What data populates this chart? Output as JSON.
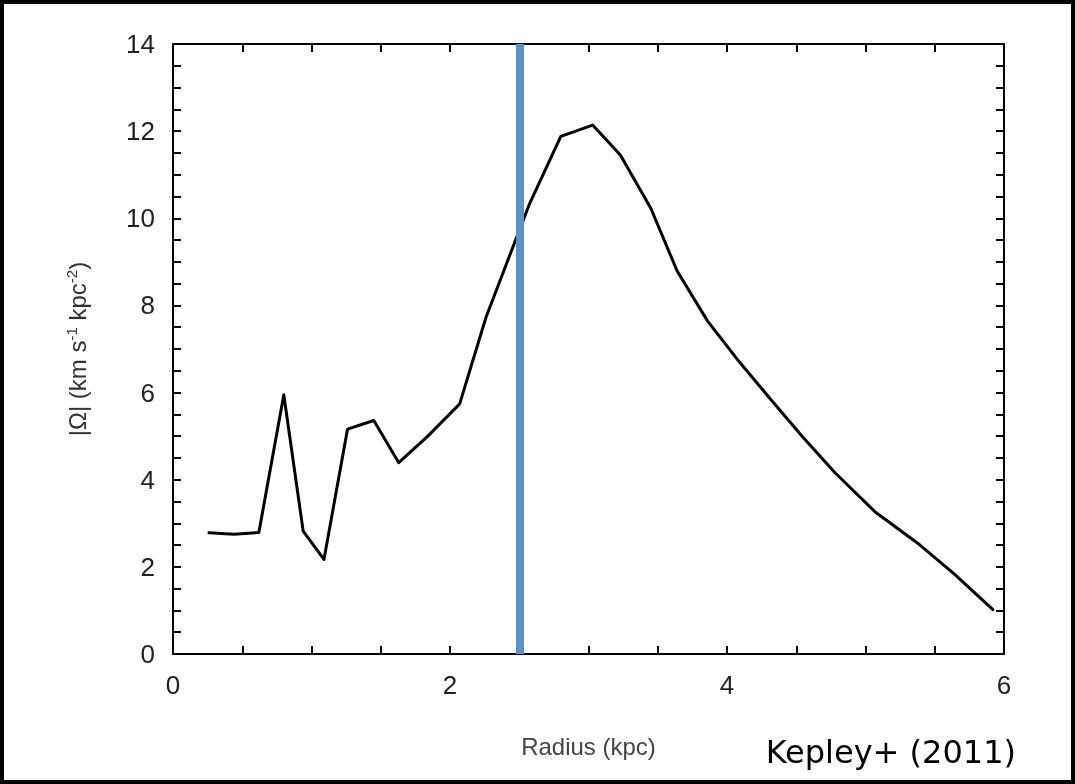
{
  "chart_data": {
    "type": "line",
    "xlabel": "Radius (kpc)",
    "ylabel": "|Ω| (km s$^{-1}$ kpc$^{-2}$)",
    "annotations": [
      "Kepley+ (2011)"
    ],
    "x": [
      0.26,
      0.44,
      0.62,
      0.8,
      0.94,
      1.09,
      1.26,
      1.45,
      1.63,
      1.84,
      2.07,
      2.26,
      2.57,
      2.8,
      3.03,
      3.23,
      3.45,
      3.64,
      3.86,
      4.09,
      4.33,
      4.55,
      4.78,
      5.07,
      5.37,
      5.64,
      5.92
    ],
    "series": [
      {
        "color": "#000000",
        "values": [
          2.78,
          2.75,
          2.79,
          5.95,
          2.82,
          2.17,
          5.16,
          5.36,
          4.39,
          5.0,
          5.74,
          7.73,
          10.3,
          11.88,
          12.14,
          11.45,
          10.23,
          8.79,
          7.64,
          6.7,
          5.79,
          4.97,
          4.16,
          3.26,
          2.56,
          1.84,
          1.02
        ]
      }
    ],
    "xlim": [
      0,
      6
    ],
    "xticks": [
      0,
      {
        "value": 0.5,
        "label": null
      },
      {
        "value": 1,
        "label": null
      },
      {
        "value": 1.5,
        "label": null
      },
      2,
      {
        "value": 2.5,
        "label": null
      },
      {
        "value": 3,
        "label": null
      },
      {
        "value": 3.5,
        "label": null
      },
      4,
      {
        "value": 4.5,
        "label": null
      },
      {
        "value": 5,
        "label": null
      },
      {
        "value": 5.5,
        "label": null
      },
      6
    ],
    "ylim": [
      0,
      14
    ],
    "yticks": [
      0,
      {
        "value": 0.5,
        "label": null
      },
      {
        "value": 1,
        "label": null
      },
      {
        "value": 1.5,
        "label": null
      },
      2,
      {
        "value": 2.5,
        "label": null
      },
      {
        "value": 3,
        "label": null
      },
      {
        "value": 3.5,
        "label": null
      },
      4,
      {
        "value": 4.5,
        "label": null
      },
      {
        "value": 5,
        "label": null
      },
      {
        "value": 5.5,
        "label": null
      },
      6,
      {
        "value": 6.5,
        "label": null
      },
      {
        "value": 7,
        "label": null
      },
      {
        "value": 7.5,
        "label": null
      },
      8,
      {
        "value": 8.5,
        "label": null
      },
      {
        "value": 9,
        "label": null
      },
      {
        "value": 9.5,
        "label": null
      },
      10,
      {
        "value": 10.5,
        "label": null
      },
      {
        "value": 11,
        "label": null
      },
      {
        "value": 11.5,
        "label": null
      },
      12,
      {
        "value": 12.5,
        "label": null
      },
      {
        "value": 13,
        "label": null
      },
      {
        "value": 13.5,
        "label": null
      },
      14
    ],
    "ref_lines": [
      {
        "axis": "x",
        "value": 2.5,
        "color": "#5b93c9"
      }
    ],
    "grid": false,
    "marker": "none",
    "line_style": "solid"
  }
}
